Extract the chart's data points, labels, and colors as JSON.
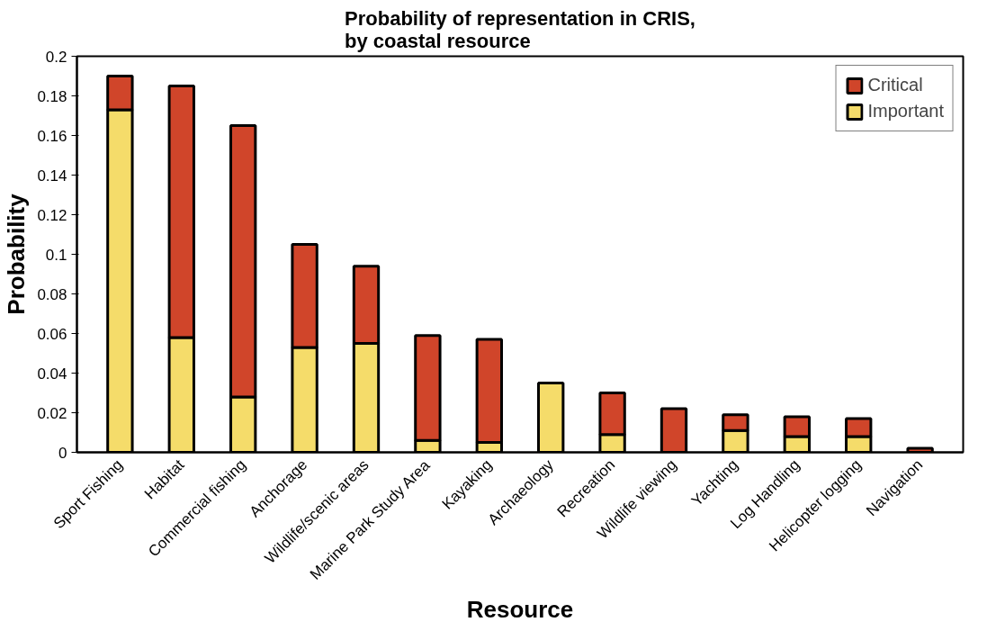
{
  "chart_data": {
    "type": "bar",
    "title": "Probability of representation in CRIS,\nby coastal resource",
    "xlabel": "Resource",
    "ylabel": "Probability",
    "categories": [
      "Sport Fishing",
      "Habitat",
      "Commercial fishing",
      "Anchorage",
      "Wildlife/scenic areas",
      "Marine Park Study Area",
      "Kayaking",
      "Archaeology",
      "Recreation",
      "Wildlife viewing",
      "Yachting",
      "Log Handling",
      "Helicopter logging",
      "Navigation"
    ],
    "stacked": true,
    "series": [
      {
        "name": "Important",
        "color": "#f5dc6a",
        "values": [
          0.173,
          0.058,
          0.028,
          0.053,
          0.055,
          0.006,
          0.005,
          0.035,
          0.009,
          null,
          0.011,
          0.008,
          0.008,
          null
        ]
      },
      {
        "name": "Critical",
        "color": "#d0452a",
        "values": [
          0.017,
          0.127,
          0.137,
          0.052,
          0.039,
          0.053,
          0.052,
          null,
          0.021,
          0.022,
          0.008,
          0.01,
          0.009,
          0.002
        ]
      }
    ],
    "ylim": [
      0,
      0.2
    ],
    "yticks": [
      0,
      0.02,
      0.04,
      0.06,
      0.08,
      0.1,
      0.12,
      0.14,
      0.16,
      0.18,
      0.2
    ],
    "grid": false,
    "legend": "top right"
  }
}
